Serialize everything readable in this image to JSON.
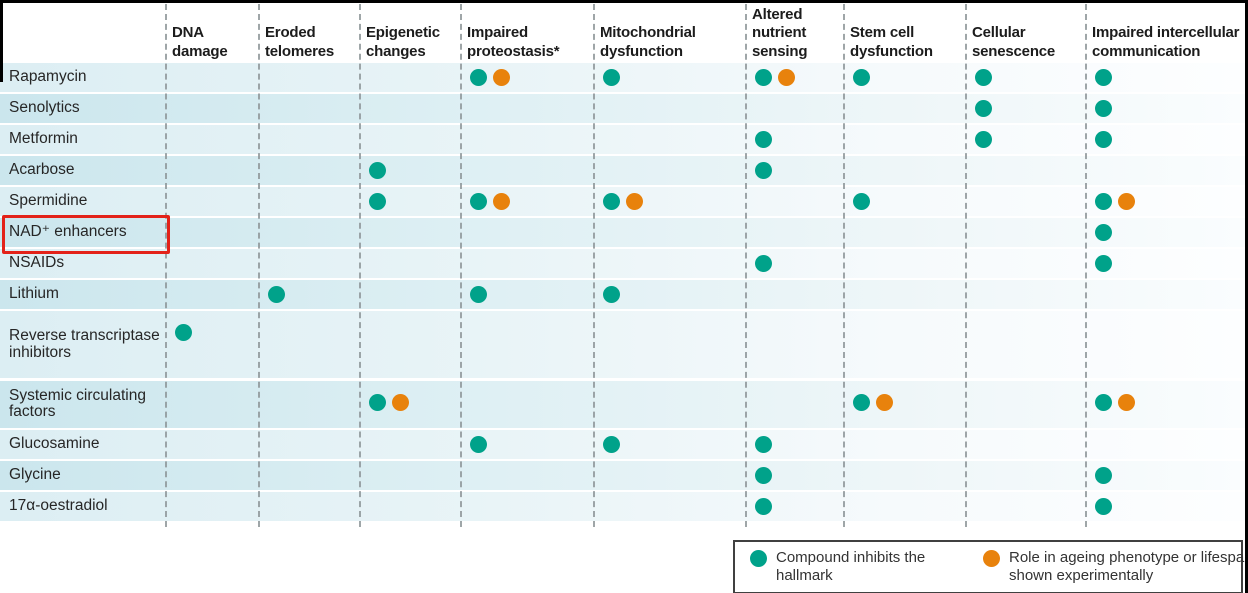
{
  "figure": {
    "highlight": {
      "row": "NAD⁺ enhancers",
      "style": "red box around row label"
    },
    "legend": [
      {
        "marker": "teal-dot",
        "label": "Compound inhibits the hallmark"
      },
      {
        "marker": "orange-dot",
        "label": "Role in ageing phenotype or lifespan shown experimentally"
      }
    ],
    "colors": {
      "inhibits_dot": "#00a28a",
      "experimental_dot": "#e8820c",
      "highlight_box": "#e32219",
      "row_stripe_light": "#dceef3",
      "row_stripe_dark": "#cbe6ed",
      "legend_border": "#404040",
      "header_text": "#1c1c1c"
    }
  },
  "chart_data": {
    "type": "table",
    "columns": [
      "DNA damage",
      "Eroded telomeres",
      "Epigenetic changes",
      "Impaired proteostasis*",
      "Mitochondrial dysfunction",
      "Altered nutrient sensing",
      "Stem cell dysfunction",
      "Cellular senescence",
      "Impaired intercellular communication"
    ],
    "rows": [
      "Rapamycin",
      "Senolytics",
      "Metformin",
      "Acarbose",
      "Spermidine",
      "NAD⁺ enhancers",
      "NSAIDs",
      "Lithium",
      "Reverse transcriptase inhibitors",
      "Systemic circulating factors",
      "Glucosamine",
      "Glycine",
      "17α-oestradiol"
    ],
    "values": [
      [
        "",
        "",
        "",
        "TO",
        "T",
        "TO",
        "T",
        "T",
        "T"
      ],
      [
        "",
        "",
        "",
        "",
        "",
        "",
        "",
        "T",
        "T"
      ],
      [
        "",
        "",
        "",
        "",
        "",
        "T",
        "",
        "T",
        "T"
      ],
      [
        "",
        "",
        "T",
        "",
        "",
        "T",
        "",
        "",
        ""
      ],
      [
        "",
        "",
        "T",
        "TO",
        "TO",
        "",
        "T",
        "",
        "TO"
      ],
      [
        "",
        "",
        "",
        "",
        "",
        "",
        "",
        "",
        "T"
      ],
      [
        "",
        "",
        "",
        "",
        "",
        "T",
        "",
        "",
        "T"
      ],
      [
        "",
        "T",
        "",
        "T",
        "T",
        "",
        "",
        "",
        ""
      ],
      [
        "T",
        "",
        "",
        "",
        "",
        "",
        "",
        "",
        ""
      ],
      [
        "",
        "",
        "TO",
        "",
        "",
        "",
        "TO",
        "",
        "TO"
      ],
      [
        "",
        "",
        "",
        "T",
        "T",
        "T",
        "",
        "",
        ""
      ],
      [
        "",
        "",
        "",
        "",
        "",
        "T",
        "",
        "",
        "T"
      ],
      [
        "",
        "",
        "",
        "",
        "",
        "T",
        "",
        "",
        "T"
      ]
    ],
    "value_key": {
      "T": "teal dot — compound inhibits the hallmark",
      "TO": "teal dot + orange dot — inhibits the hallmark and role in ageing phenotype or lifespan shown experimentally",
      "": "no marker"
    },
    "legend_position": "bottom-right",
    "highlighted_row": "NAD⁺ enhancers"
  }
}
